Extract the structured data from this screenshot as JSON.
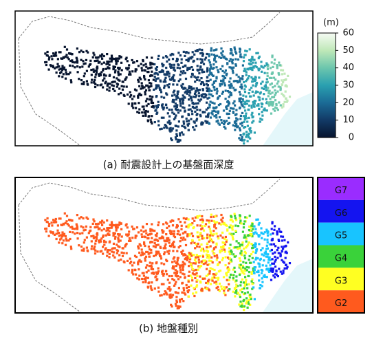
{
  "panel_a": {
    "caption": "(a)  耐震設計上の基盤面深度"
  },
  "colorbar": {
    "unit": "(m)",
    "lim": [
      0,
      60
    ],
    "ticks": [
      0,
      10,
      20,
      30,
      40,
      50,
      60
    ],
    "colors": [
      "#07142e",
      "#123a66",
      "#1b6b96",
      "#2aa0b0",
      "#6cc6ad",
      "#bfe8b8",
      "#f6fbf4"
    ]
  },
  "panel_b": {
    "caption": "(b)  地盤種別"
  },
  "legend": {
    "items": [
      {
        "label": "G7",
        "color": "#9a2cff"
      },
      {
        "label": "G6",
        "color": "#1414f0"
      },
      {
        "label": "G5",
        "color": "#18c4ff"
      },
      {
        "label": "G4",
        "color": "#3ad23a"
      },
      {
        "label": "G3",
        "color": "#ffff22"
      },
      {
        "label": "G2",
        "color": "#ff5a1e"
      }
    ]
  }
}
